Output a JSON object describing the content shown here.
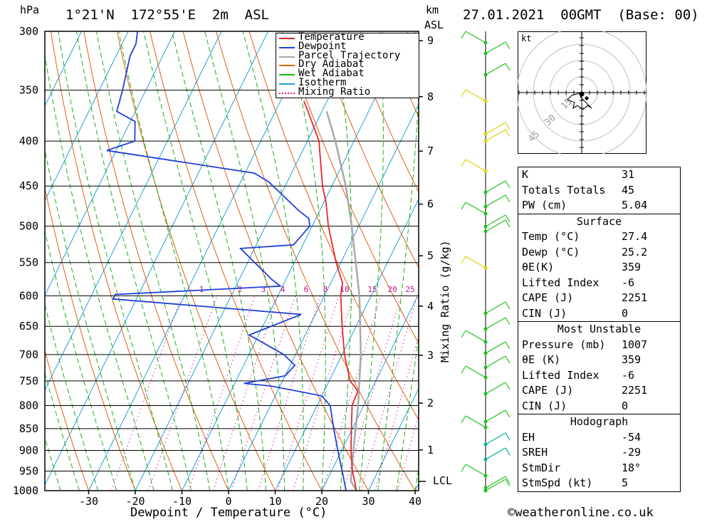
{
  "header": {
    "location": "1°21'N  172°55'E  2m  ASL",
    "datetime": "27.01.2021  00GMT  (Base: 00)",
    "left_unit": "hPa",
    "right_unit_top": "km",
    "right_unit_bottom": "ASL"
  },
  "axes": {
    "xlabel": "Dewpoint / Temperature (°C)",
    "mixing_label": "Mixing Ratio (g/kg)",
    "hodo_unit": "kt",
    "lcl_label": "LCL"
  },
  "chart_data": {
    "type": "line",
    "title": "",
    "x_ticks": [
      -30,
      -20,
      -10,
      0,
      10,
      20,
      30,
      40
    ],
    "pressure_ticks": [
      300,
      350,
      400,
      450,
      500,
      550,
      600,
      650,
      700,
      750,
      800,
      850,
      900,
      950,
      1000
    ],
    "height_ticks_km": [
      1,
      2,
      3,
      4,
      5,
      6,
      7,
      8,
      9
    ],
    "mixing_ratio_ticks": [
      "1",
      "2",
      "3",
      "4",
      "6",
      "8",
      "10",
      "15",
      "20",
      "25"
    ],
    "hodograph_rings": [
      "15",
      "30",
      "45"
    ],
    "legend": [
      {
        "name": "Temperature",
        "color": "#e8262a"
      },
      {
        "name": "Dewpoint",
        "color": "#2040d8"
      },
      {
        "name": "Parcel Trajectory",
        "color": "#a8a8a8"
      },
      {
        "name": "Dry Adiabat",
        "color": "#e06010"
      },
      {
        "name": "Wet Adiabat",
        "color": "#18b018"
      },
      {
        "name": "Isotherm",
        "color": "#20a0e0"
      },
      {
        "name": "Mixing Ratio",
        "color": "#d020a0"
      }
    ],
    "temperature": [
      {
        "p": 1000,
        "t": 27.4
      },
      {
        "p": 975,
        "t": 26.0
      },
      {
        "p": 950,
        "t": 24.5
      },
      {
        "p": 900,
        "t": 22.0
      },
      {
        "p": 850,
        "t": 19.8
      },
      {
        "p": 800,
        "t": 17.5
      },
      {
        "p": 770,
        "t": 17.2
      },
      {
        "p": 750,
        "t": 14.5
      },
      {
        "p": 700,
        "t": 10.5
      },
      {
        "p": 650,
        "t": 7.0
      },
      {
        "p": 600,
        "t": 3.5
      },
      {
        "p": 580,
        "t": 2.5
      },
      {
        "p": 550,
        "t": -1.0
      },
      {
        "p": 500,
        "t": -6.5
      },
      {
        "p": 470,
        "t": -9.5
      },
      {
        "p": 450,
        "t": -12.0
      },
      {
        "p": 400,
        "t": -17.5
      },
      {
        "p": 370,
        "t": -23.0
      },
      {
        "p": 360,
        "t": -25.0
      }
    ],
    "dewpoint": [
      {
        "p": 1000,
        "t": 25.2
      },
      {
        "p": 950,
        "t": 22.3
      },
      {
        "p": 900,
        "t": 19.2
      },
      {
        "p": 850,
        "t": 16.0
      },
      {
        "p": 800,
        "t": 12.8
      },
      {
        "p": 780,
        "t": 10.0
      },
      {
        "p": 760,
        "t": -2.0
      },
      {
        "p": 755,
        "t": -8.0
      },
      {
        "p": 740,
        "t": 0.0
      },
      {
        "p": 720,
        "t": 1.0
      },
      {
        "p": 700,
        "t": -2.5
      },
      {
        "p": 665,
        "t": -12.0
      },
      {
        "p": 630,
        "t": -3.0
      },
      {
        "p": 605,
        "t": -45.0
      },
      {
        "p": 598,
        "t": -45.0
      },
      {
        "p": 585,
        "t": -10.5
      },
      {
        "p": 575,
        "t": -13.0
      },
      {
        "p": 530,
        "t": -23.0
      },
      {
        "p": 525,
        "t": -12.0
      },
      {
        "p": 500,
        "t": -10.5
      },
      {
        "p": 490,
        "t": -11.5
      },
      {
        "p": 480,
        "t": -14.5
      },
      {
        "p": 445,
        "t": -24.0
      },
      {
        "p": 435,
        "t": -28.0
      },
      {
        "p": 410,
        "t": -62.0
      },
      {
        "p": 400,
        "t": -57.0
      },
      {
        "p": 380,
        "t": -59.0
      },
      {
        "p": 370,
        "t": -64.0
      },
      {
        "p": 350,
        "t": -65.0
      },
      {
        "p": 320,
        "t": -67.0
      },
      {
        "p": 310,
        "t": -67.0
      },
      {
        "p": 300,
        "t": -68.0
      }
    ],
    "parcel": [
      {
        "p": 1000,
        "t": 27.4
      },
      {
        "p": 975,
        "t": 25.2
      },
      {
        "p": 900,
        "t": 22.5
      },
      {
        "p": 800,
        "t": 18.8
      },
      {
        "p": 700,
        "t": 14.0
      },
      {
        "p": 600,
        "t": 7.5
      },
      {
        "p": 500,
        "t": -1.5
      },
      {
        "p": 450,
        "t": -7.0
      },
      {
        "p": 400,
        "t": -14.0
      },
      {
        "p": 370,
        "t": -19.0
      }
    ]
  },
  "indices": {
    "general": [
      {
        "label": "K",
        "value": "31"
      },
      {
        "label": "Totals Totals",
        "value": "45"
      },
      {
        "label": "PW (cm)",
        "value": "5.04"
      }
    ],
    "surface": {
      "title": "Surface",
      "rows": [
        {
          "label": "Temp (°C)",
          "value": "27.4"
        },
        {
          "label": "Dewp (°C)",
          "value": "25.2"
        },
        {
          "label": "θE(K)",
          "value": "359"
        },
        {
          "label": "Lifted Index",
          "value": "-6"
        },
        {
          "label": "CAPE (J)",
          "value": "2251"
        },
        {
          "label": "CIN (J)",
          "value": "0"
        }
      ]
    },
    "most_unstable": {
      "title": "Most Unstable",
      "rows": [
        {
          "label": "Pressure (mb)",
          "value": "1007"
        },
        {
          "label": "θE (K)",
          "value": "359"
        },
        {
          "label": "Lifted Index",
          "value": "-6"
        },
        {
          "label": "CAPE (J)",
          "value": "2251"
        },
        {
          "label": "CIN (J)",
          "value": "0"
        }
      ]
    },
    "hodograph": {
      "title": "Hodograph",
      "rows": [
        {
          "label": "EH",
          "value": "-54"
        },
        {
          "label": "SREH",
          "value": "-29"
        },
        {
          "label": "StmDir",
          "value": "18°"
        },
        {
          "label": "StmSpd (kt)",
          "value": "5"
        }
      ]
    }
  },
  "footer": {
    "copyright": "©weatheronline.co.uk"
  }
}
